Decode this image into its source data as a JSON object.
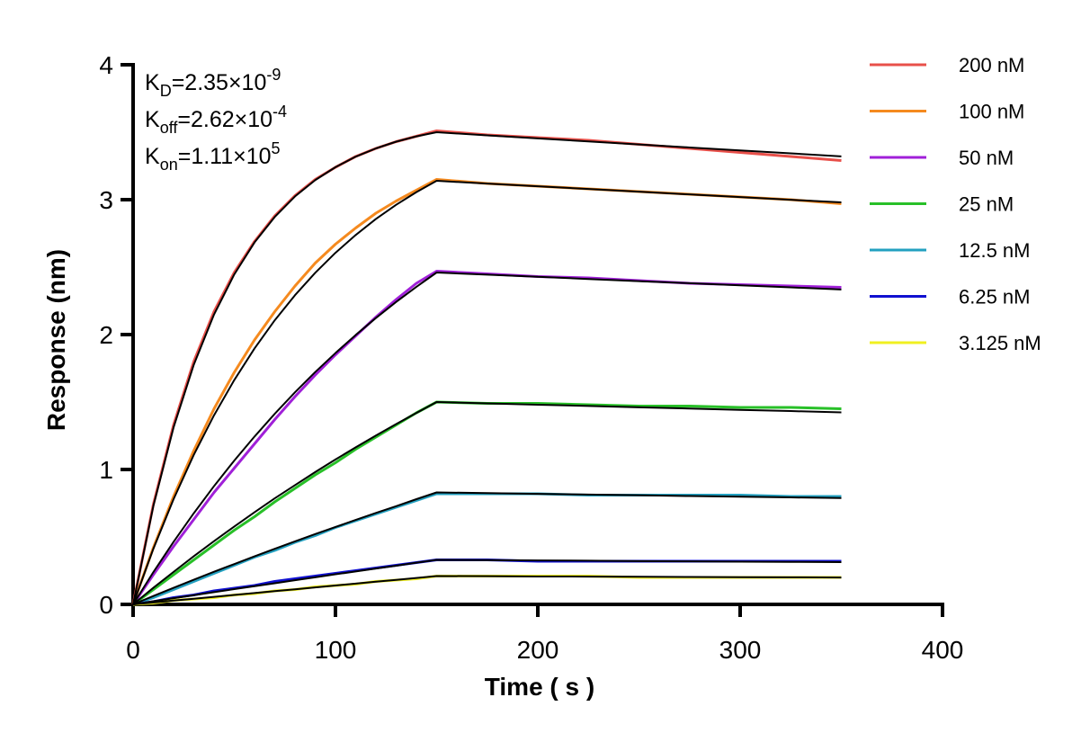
{
  "chart_data": {
    "type": "line",
    "xlabel": "Time ( s )",
    "ylabel": "Response (nm)",
    "xlim": [
      0,
      400
    ],
    "xticks": [
      0,
      100,
      200,
      300,
      400
    ],
    "ylim": [
      0,
      4
    ],
    "yticks": [
      0,
      1,
      2,
      3,
      4
    ],
    "annotations": [
      {
        "symbol": "K",
        "subscript": "D",
        "text": "=2.35×10",
        "exponent": "-9"
      },
      {
        "symbol": "K",
        "subscript": "off",
        "text": "=2.62×10",
        "exponent": "-4"
      },
      {
        "symbol": "K",
        "subscript": "on",
        "text": "=1.11×10",
        "exponent": "5"
      }
    ],
    "x": [
      0,
      10,
      20,
      30,
      40,
      50,
      60,
      70,
      80,
      90,
      100,
      110,
      120,
      130,
      140,
      150,
      175,
      200,
      225,
      250,
      275,
      300,
      325,
      350
    ],
    "series": [
      {
        "name": "200 nM",
        "color": "#e8504a",
        "values": [
          0,
          0.74,
          1.33,
          1.8,
          2.17,
          2.46,
          2.69,
          2.88,
          3.03,
          3.15,
          3.24,
          3.32,
          3.38,
          3.43,
          3.47,
          3.51,
          3.48,
          3.46,
          3.44,
          3.41,
          3.38,
          3.35,
          3.32,
          3.29
        ]
      },
      {
        "name": "100 nM",
        "color": "#f58a1f",
        "values": [
          0,
          0.42,
          0.8,
          1.14,
          1.45,
          1.72,
          1.96,
          2.17,
          2.36,
          2.53,
          2.67,
          2.79,
          2.9,
          2.99,
          3.07,
          3.15,
          3.12,
          3.1,
          3.08,
          3.06,
          3.04,
          3.02,
          3.0,
          2.97
        ]
      },
      {
        "name": "50 nM",
        "color": "#a020d8",
        "values": [
          0,
          0.22,
          0.43,
          0.63,
          0.83,
          1.01,
          1.19,
          1.37,
          1.54,
          1.7,
          1.85,
          1.99,
          2.13,
          2.26,
          2.38,
          2.47,
          2.45,
          2.43,
          2.42,
          2.4,
          2.38,
          2.37,
          2.36,
          2.35
        ]
      },
      {
        "name": "25 nM",
        "color": "#28c028",
        "values": [
          0,
          0.11,
          0.22,
          0.33,
          0.44,
          0.55,
          0.65,
          0.76,
          0.86,
          0.96,
          1.05,
          1.15,
          1.24,
          1.33,
          1.42,
          1.5,
          1.49,
          1.49,
          1.48,
          1.47,
          1.47,
          1.46,
          1.46,
          1.45
        ]
      },
      {
        "name": "12.5 nM",
        "color": "#23a0c0",
        "values": [
          0,
          0.05,
          0.11,
          0.17,
          0.23,
          0.29,
          0.35,
          0.4,
          0.46,
          0.51,
          0.57,
          0.62,
          0.67,
          0.72,
          0.77,
          0.82,
          0.82,
          0.82,
          0.81,
          0.81,
          0.81,
          0.81,
          0.8,
          0.8
        ]
      },
      {
        "name": "6.25 nM",
        "color": "#1010d0",
        "values": [
          0,
          0.02,
          0.05,
          0.07,
          0.1,
          0.12,
          0.14,
          0.17,
          0.19,
          0.21,
          0.23,
          0.25,
          0.27,
          0.29,
          0.31,
          0.33,
          0.33,
          0.32,
          0.32,
          0.32,
          0.32,
          0.32,
          0.32,
          0.32
        ]
      },
      {
        "name": "3.125 nM",
        "color": "#f0f020",
        "values": [
          0,
          0.01,
          0.03,
          0.04,
          0.05,
          0.07,
          0.08,
          0.1,
          0.11,
          0.13,
          0.14,
          0.15,
          0.17,
          0.18,
          0.19,
          0.21,
          0.21,
          0.21,
          0.21,
          0.2,
          0.2,
          0.2,
          0.2,
          0.2
        ]
      }
    ],
    "fit_color": "#000000",
    "fits": [
      [
        0,
        0.729,
        1.312,
        1.777,
        2.149,
        2.446,
        2.683,
        2.872,
        3.024,
        3.145,
        3.241,
        3.319,
        3.38,
        3.43,
        3.469,
        3.5,
        3.477,
        3.454,
        3.432,
        3.409,
        3.387,
        3.365,
        3.343,
        3.321
      ],
      [
        0,
        0.412,
        0.78,
        1.109,
        1.402,
        1.663,
        1.897,
        2.106,
        2.292,
        2.458,
        2.606,
        2.738,
        2.857,
        2.962,
        3.056,
        3.14,
        3.119,
        3.099,
        3.079,
        3.059,
        3.039,
        3.019,
        2.999,
        2.98
      ],
      [
        0,
        0.239,
        0.464,
        0.676,
        0.877,
        1.066,
        1.244,
        1.413,
        1.572,
        1.722,
        1.863,
        1.997,
        2.123,
        2.242,
        2.354,
        2.46,
        2.444,
        2.428,
        2.412,
        2.396,
        2.381,
        2.365,
        2.35,
        2.334
      ],
      [
        0,
        0.123,
        0.241,
        0.357,
        0.469,
        0.577,
        0.683,
        0.786,
        0.884,
        0.981,
        1.074,
        1.164,
        1.252,
        1.337,
        1.419,
        1.5,
        1.49,
        1.48,
        1.471,
        1.461,
        1.452,
        1.442,
        1.433,
        1.423
      ],
      [
        0,
        0.062,
        0.123,
        0.183,
        0.242,
        0.299,
        0.356,
        0.412,
        0.467,
        0.521,
        0.574,
        0.626,
        0.678,
        0.728,
        0.78,
        0.83,
        0.825,
        0.819,
        0.814,
        0.809,
        0.803,
        0.798,
        0.793,
        0.788
      ],
      [
        0,
        0.023,
        0.046,
        0.068,
        0.091,
        0.113,
        0.135,
        0.157,
        0.179,
        0.201,
        0.223,
        0.244,
        0.266,
        0.287,
        0.309,
        0.33,
        0.328,
        0.326,
        0.324,
        0.321,
        0.319,
        0.317,
        0.315,
        0.313
      ],
      [
        0,
        0.014,
        0.028,
        0.042,
        0.056,
        0.07,
        0.084,
        0.098,
        0.112,
        0.126,
        0.14,
        0.154,
        0.168,
        0.182,
        0.196,
        0.21,
        0.209,
        0.207,
        0.206,
        0.205,
        0.203,
        0.202,
        0.201,
        0.199
      ]
    ]
  }
}
